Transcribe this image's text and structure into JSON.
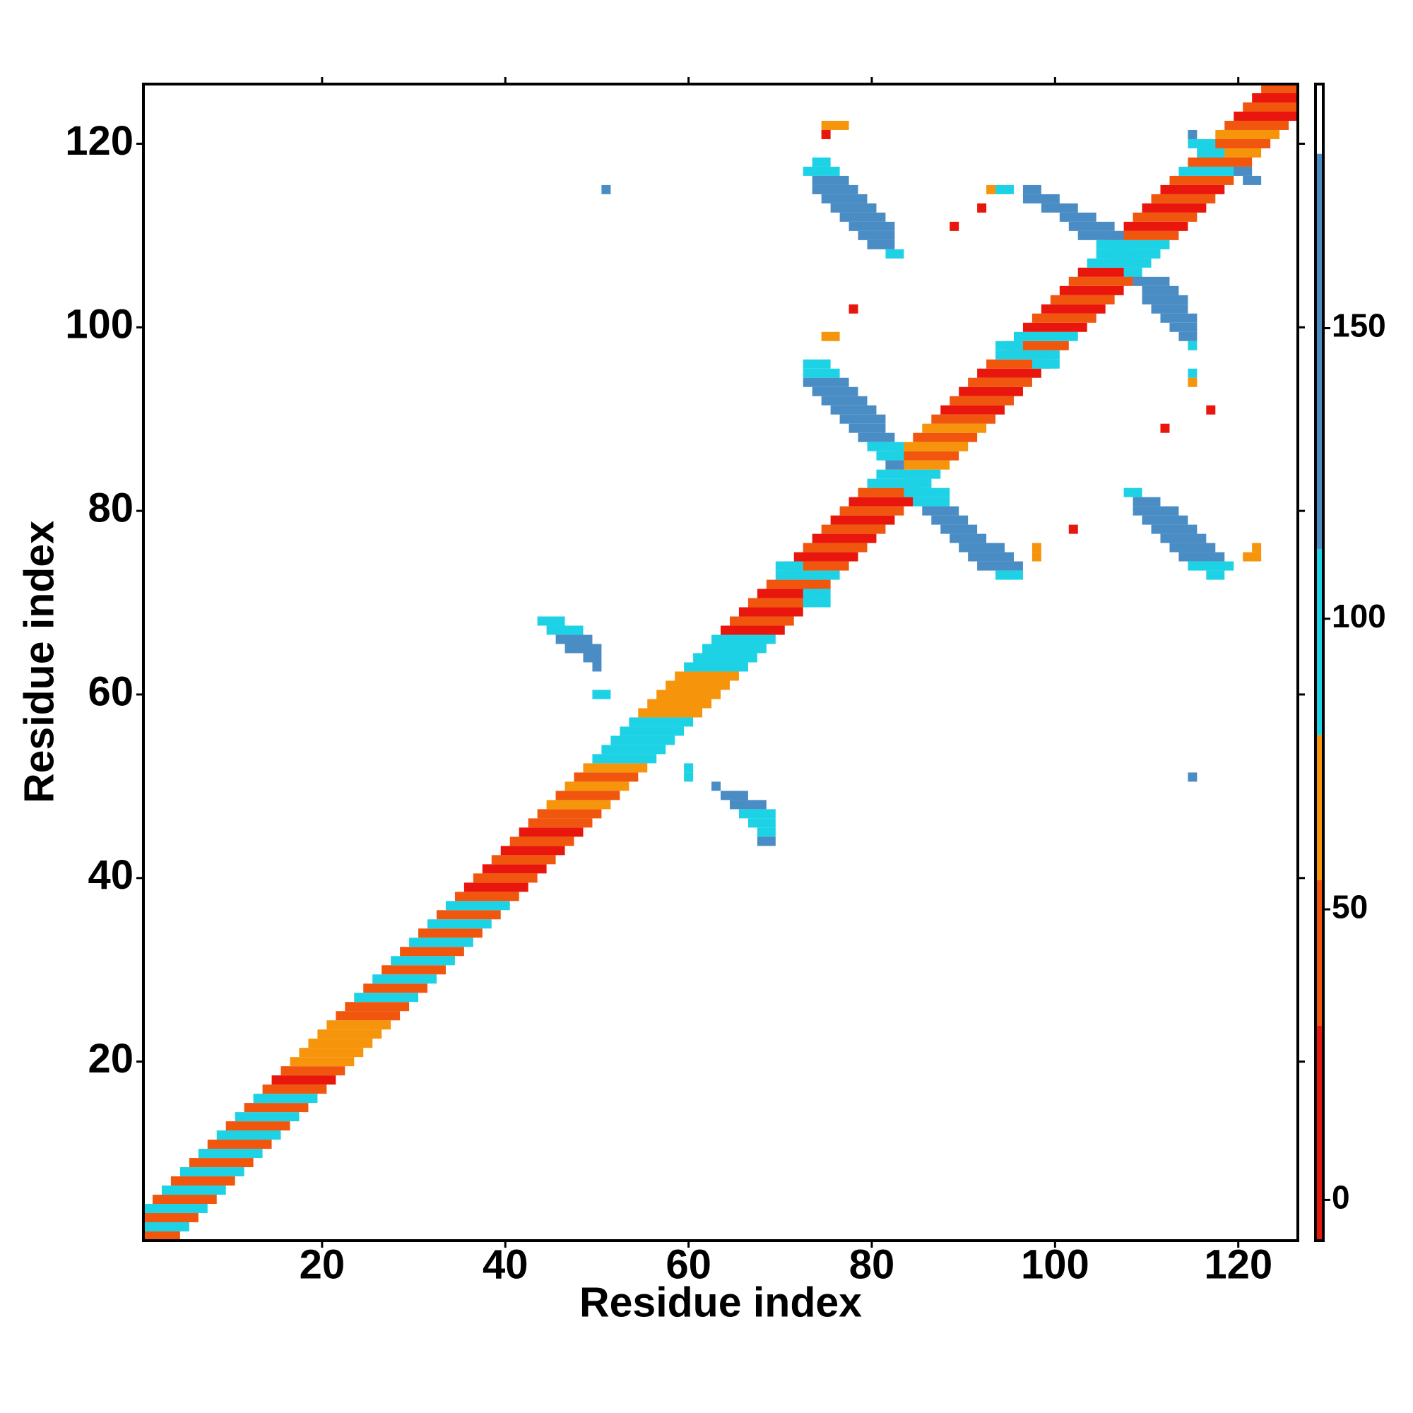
{
  "chart_data": {
    "type": "heatmap",
    "xlabel": "Residue index",
    "ylabel": "Residue index",
    "xlim": [
      0.5,
      126.5
    ],
    "ylim": [
      0.5,
      126.5
    ],
    "xticks": [
      20,
      40,
      60,
      80,
      100,
      120
    ],
    "yticks": [
      20,
      40,
      60,
      80,
      100,
      120
    ],
    "colorbar": {
      "lim": [
        -7,
        192
      ],
      "ticks": [
        0,
        50,
        100,
        150
      ],
      "bins": [
        {
          "max": 30,
          "color": "#e8160c"
        },
        {
          "max": 55,
          "color": "#f0560e"
        },
        {
          "max": 80,
          "color": "#f6950b"
        },
        {
          "max": 112,
          "color": "#1ed2e6"
        },
        {
          "max": 180,
          "color": "#4a8cc4"
        }
      ]
    },
    "runs": [
      [
        1,
        1,
        4,
        45
      ],
      [
        2,
        1,
        5,
        90
      ],
      [
        3,
        1,
        6,
        45
      ],
      [
        4,
        1,
        7,
        90
      ],
      [
        5,
        2,
        8,
        45
      ],
      [
        6,
        3,
        9,
        90
      ],
      [
        7,
        4,
        10,
        45
      ],
      [
        8,
        5,
        11,
        90
      ],
      [
        9,
        6,
        12,
        45
      ],
      [
        10,
        7,
        13,
        90
      ],
      [
        11,
        8,
        14,
        45
      ],
      [
        12,
        9,
        15,
        90
      ],
      [
        13,
        10,
        16,
        45
      ],
      [
        14,
        11,
        17,
        90
      ],
      [
        15,
        12,
        18,
        45
      ],
      [
        16,
        13,
        19,
        90
      ],
      [
        17,
        14,
        20,
        45
      ],
      [
        18,
        15,
        21,
        10
      ],
      [
        19,
        16,
        22,
        45
      ],
      [
        20,
        17,
        23,
        70
      ],
      [
        21,
        18,
        24,
        70
      ],
      [
        22,
        19,
        25,
        70
      ],
      [
        23,
        20,
        26,
        70
      ],
      [
        24,
        21,
        27,
        70
      ],
      [
        25,
        22,
        28,
        45
      ],
      [
        26,
        23,
        29,
        45
      ],
      [
        27,
        24,
        30,
        90
      ],
      [
        28,
        25,
        31,
        45
      ],
      [
        29,
        26,
        32,
        90
      ],
      [
        30,
        27,
        33,
        45
      ],
      [
        31,
        28,
        34,
        90
      ],
      [
        32,
        29,
        35,
        45
      ],
      [
        33,
        30,
        36,
        90
      ],
      [
        34,
        31,
        37,
        45
      ],
      [
        35,
        32,
        38,
        90
      ],
      [
        36,
        33,
        39,
        45
      ],
      [
        37,
        34,
        40,
        90
      ],
      [
        38,
        35,
        41,
        45
      ],
      [
        39,
        36,
        42,
        10
      ],
      [
        40,
        37,
        43,
        45
      ],
      [
        41,
        38,
        44,
        10
      ],
      [
        42,
        39,
        45,
        45
      ],
      [
        43,
        40,
        46,
        10
      ],
      [
        44,
        41,
        47,
        45
      ],
      [
        45,
        42,
        48,
        10
      ],
      [
        46,
        43,
        49,
        45
      ],
      [
        47,
        44,
        50,
        45
      ],
      [
        48,
        45,
        51,
        70
      ],
      [
        49,
        46,
        52,
        45
      ],
      [
        50,
        47,
        53,
        70
      ],
      [
        51,
        48,
        54,
        45
      ],
      [
        52,
        49,
        55,
        70
      ],
      [
        53,
        50,
        56,
        90
      ],
      [
        54,
        51,
        57,
        90
      ],
      [
        55,
        52,
        58,
        90
      ],
      [
        56,
        53,
        59,
        90
      ],
      [
        57,
        54,
        60,
        90
      ],
      [
        58,
        55,
        61,
        70
      ],
      [
        59,
        56,
        62,
        70
      ],
      [
        60,
        57,
        63,
        70
      ],
      [
        61,
        58,
        64,
        70
      ],
      [
        62,
        59,
        65,
        70
      ],
      [
        63,
        60,
        66,
        90
      ],
      [
        64,
        61,
        67,
        90
      ],
      [
        65,
        62,
        68,
        90
      ],
      [
        66,
        63,
        69,
        90
      ],
      [
        67,
        64,
        70,
        10
      ],
      [
        68,
        65,
        71,
        45
      ],
      [
        69,
        66,
        72,
        10
      ],
      [
        70,
        67,
        73,
        45
      ],
      [
        71,
        68,
        74,
        10
      ],
      [
        72,
        69,
        75,
        45
      ],
      [
        73,
        70,
        76,
        90
      ],
      [
        74,
        71,
        77,
        45
      ],
      [
        75,
        72,
        78,
        10
      ],
      [
        76,
        73,
        79,
        45
      ],
      [
        77,
        74,
        80,
        10
      ],
      [
        78,
        75,
        81,
        45
      ],
      [
        79,
        76,
        82,
        10
      ],
      [
        80,
        77,
        83,
        45
      ],
      [
        81,
        78,
        84,
        10
      ],
      [
        82,
        79,
        85,
        45
      ],
      [
        83,
        80,
        86,
        90
      ],
      [
        84,
        81,
        87,
        90
      ],
      [
        85,
        82,
        88,
        70
      ],
      [
        86,
        83,
        89,
        45
      ],
      [
        87,
        84,
        90,
        70
      ],
      [
        88,
        85,
        91,
        45
      ],
      [
        89,
        86,
        92,
        70
      ],
      [
        90,
        87,
        93,
        45
      ],
      [
        91,
        88,
        94,
        10
      ],
      [
        92,
        89,
        95,
        45
      ],
      [
        93,
        90,
        96,
        10
      ],
      [
        94,
        91,
        97,
        45
      ],
      [
        95,
        92,
        98,
        10
      ],
      [
        96,
        93,
        99,
        45
      ],
      [
        97,
        94,
        100,
        90
      ],
      [
        98,
        95,
        101,
        45
      ],
      [
        99,
        96,
        102,
        90
      ],
      [
        100,
        97,
        103,
        10
      ],
      [
        101,
        98,
        104,
        45
      ],
      [
        102,
        99,
        105,
        10
      ],
      [
        103,
        100,
        106,
        45
      ],
      [
        104,
        101,
        107,
        10
      ],
      [
        105,
        102,
        108,
        45
      ],
      [
        106,
        103,
        109,
        10
      ],
      [
        107,
        104,
        110,
        90
      ],
      [
        108,
        105,
        111,
        90
      ],
      [
        109,
        106,
        112,
        90
      ],
      [
        110,
        107,
        113,
        45
      ],
      [
        111,
        108,
        114,
        10
      ],
      [
        112,
        109,
        115,
        45
      ],
      [
        113,
        110,
        116,
        10
      ],
      [
        114,
        111,
        117,
        45
      ],
      [
        115,
        112,
        118,
        10
      ],
      [
        116,
        113,
        119,
        45
      ],
      [
        117,
        114,
        120,
        90
      ],
      [
        118,
        115,
        121,
        45
      ],
      [
        119,
        116,
        122,
        70
      ],
      [
        120,
        117,
        123,
        45
      ],
      [
        121,
        118,
        124,
        70
      ],
      [
        122,
        119,
        125,
        45
      ],
      [
        123,
        120,
        126,
        10
      ],
      [
        124,
        121,
        126,
        45
      ],
      [
        125,
        122,
        126,
        10
      ],
      [
        126,
        123,
        126,
        45
      ],
      [
        68,
        44,
        46,
        90
      ],
      [
        67,
        45,
        48,
        90
      ],
      [
        66,
        46,
        49,
        140
      ],
      [
        65,
        47,
        50,
        140
      ],
      [
        64,
        49,
        50,
        140
      ],
      [
        63,
        50,
        50,
        140
      ],
      [
        60,
        50,
        51,
        90
      ],
      [
        52,
        60,
        60,
        90
      ],
      [
        51,
        60,
        60,
        90
      ],
      [
        50,
        63,
        63,
        140
      ],
      [
        49,
        64,
        66,
        140
      ],
      [
        48,
        65,
        68,
        140
      ],
      [
        47,
        66,
        69,
        90
      ],
      [
        46,
        67,
        69,
        90
      ],
      [
        45,
        68,
        69,
        90
      ],
      [
        44,
        68,
        69,
        140
      ],
      [
        115,
        51,
        51,
        140
      ],
      [
        51,
        115,
        115,
        140
      ],
      [
        122,
        75,
        77,
        70
      ],
      [
        121,
        75,
        75,
        10
      ],
      [
        118,
        74,
        75,
        90
      ],
      [
        117,
        73,
        76,
        90
      ],
      [
        116,
        74,
        77,
        140
      ],
      [
        115,
        74,
        78,
        140
      ],
      [
        114,
        75,
        79,
        140
      ],
      [
        113,
        76,
        80,
        140
      ],
      [
        112,
        77,
        81,
        140
      ],
      [
        111,
        78,
        82,
        140
      ],
      [
        110,
        79,
        82,
        140
      ],
      [
        109,
        80,
        82,
        140
      ],
      [
        108,
        82,
        83,
        90
      ],
      [
        102,
        78,
        78,
        10
      ],
      [
        99,
        75,
        76,
        70
      ],
      [
        96,
        73,
        75,
        90
      ],
      [
        95,
        73,
        76,
        90
      ],
      [
        94,
        73,
        77,
        140
      ],
      [
        93,
        74,
        78,
        140
      ],
      [
        92,
        75,
        79,
        140
      ],
      [
        91,
        76,
        80,
        140
      ],
      [
        90,
        77,
        81,
        140
      ],
      [
        89,
        78,
        81,
        140
      ],
      [
        88,
        79,
        82,
        140
      ],
      [
        87,
        80,
        83,
        90
      ],
      [
        86,
        81,
        83,
        90
      ],
      [
        85,
        82,
        83,
        140
      ],
      [
        83,
        84,
        86,
        90
      ],
      [
        82,
        84,
        88,
        90
      ],
      [
        81,
        85,
        88,
        90
      ],
      [
        80,
        86,
        89,
        140
      ],
      [
        79,
        87,
        90,
        140
      ],
      [
        78,
        88,
        91,
        140
      ],
      [
        77,
        89,
        92,
        140
      ],
      [
        76,
        90,
        94,
        140
      ],
      [
        75,
        91,
        95,
        140
      ],
      [
        74,
        92,
        96,
        140
      ],
      [
        73,
        94,
        96,
        90
      ],
      [
        115,
        97,
        98,
        140
      ],
      [
        114,
        97,
        100,
        140
      ],
      [
        113,
        99,
        102,
        140
      ],
      [
        112,
        101,
        104,
        140
      ],
      [
        111,
        102,
        106,
        140
      ],
      [
        110,
        103,
        107,
        140
      ],
      [
        109,
        105,
        108,
        90
      ],
      [
        108,
        106,
        109,
        90
      ],
      [
        115,
        94,
        95,
        90
      ],
      [
        115,
        93,
        93,
        70
      ],
      [
        113,
        92,
        92,
        10
      ],
      [
        111,
        89,
        89,
        10
      ],
      [
        106,
        108,
        109,
        90
      ],
      [
        105,
        109,
        112,
        140
      ],
      [
        104,
        110,
        113,
        140
      ],
      [
        103,
        110,
        114,
        140
      ],
      [
        102,
        111,
        114,
        140
      ],
      [
        101,
        112,
        115,
        140
      ],
      [
        100,
        113,
        115,
        140
      ],
      [
        99,
        114,
        115,
        140
      ],
      [
        98,
        115,
        115,
        90
      ],
      [
        95,
        115,
        115,
        90
      ],
      [
        94,
        115,
        115,
        70
      ],
      [
        91,
        117,
        117,
        10
      ],
      [
        89,
        112,
        112,
        10
      ],
      [
        76,
        98,
        98,
        70
      ],
      [
        75,
        98,
        98,
        70
      ],
      [
        78,
        102,
        102,
        10
      ],
      [
        76,
        122,
        122,
        70
      ],
      [
        75,
        121,
        122,
        70
      ],
      [
        82,
        108,
        109,
        90
      ],
      [
        81,
        109,
        111,
        140
      ],
      [
        80,
        109,
        113,
        140
      ],
      [
        79,
        110,
        114,
        140
      ],
      [
        78,
        111,
        115,
        140
      ],
      [
        77,
        112,
        116,
        140
      ],
      [
        76,
        113,
        117,
        140
      ],
      [
        75,
        114,
        118,
        140
      ],
      [
        74,
        115,
        119,
        90
      ],
      [
        73,
        117,
        118,
        90
      ],
      [
        121,
        115,
        115,
        140
      ],
      [
        120,
        115,
        117,
        90
      ],
      [
        119,
        116,
        118,
        90
      ],
      [
        117,
        120,
        121,
        140
      ],
      [
        116,
        121,
        122,
        140
      ],
      [
        98,
        94,
        96,
        90
      ],
      [
        96,
        98,
        100,
        90
      ],
      [
        74,
        70,
        72,
        90
      ],
      [
        71,
        73,
        75,
        90
      ],
      [
        70,
        73,
        75,
        90
      ]
    ]
  }
}
